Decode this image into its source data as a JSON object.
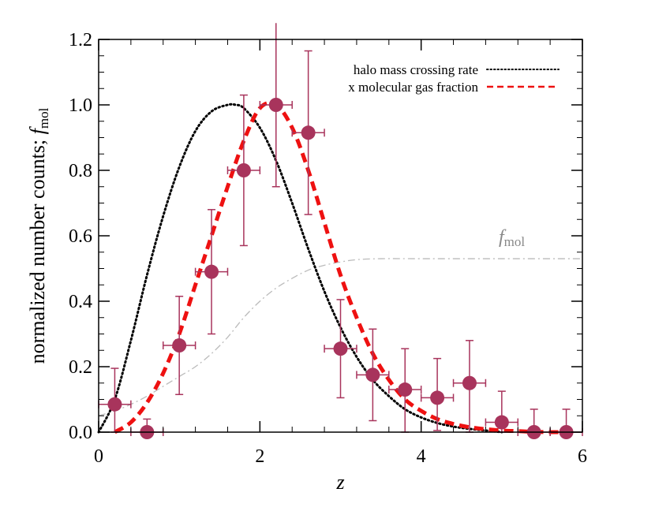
{
  "chart_data": {
    "type": "line",
    "xlabel": "z",
    "ylabel_main": "normalized number counts; ",
    "ylabel_f": "f",
    "ylabel_sub": "mol",
    "xlim": [
      0,
      6
    ],
    "ylim": [
      0,
      1.2
    ],
    "x_ticks": [
      0,
      2,
      4,
      6
    ],
    "x_tick_labels": [
      "0",
      "2",
      "4",
      "6"
    ],
    "y_ticks": [
      0,
      0.2,
      0.4,
      0.6,
      0.8,
      1.0,
      1.2
    ],
    "y_tick_labels": [
      "0.0",
      "0.2",
      "0.4",
      "0.6",
      "0.8",
      "1.0",
      "1.2"
    ],
    "legend_position": "top-right",
    "fmol_label": {
      "f": "f",
      "sub": "mol"
    },
    "series": [
      {
        "name": "halo mass crossing rate",
        "style": "dotted",
        "color": "#000000",
        "x": [
          0.0,
          0.2,
          0.4,
          0.6,
          0.8,
          1.0,
          1.2,
          1.4,
          1.6,
          1.7,
          1.8,
          2.0,
          2.2,
          2.4,
          2.6,
          2.8,
          3.0,
          3.2,
          3.4,
          3.6,
          3.8,
          4.0,
          4.2,
          4.4,
          4.6,
          4.8,
          5.0
        ],
        "y": [
          0.0,
          0.1,
          0.28,
          0.48,
          0.66,
          0.81,
          0.92,
          0.98,
          1.0,
          1.0,
          0.99,
          0.93,
          0.83,
          0.7,
          0.56,
          0.43,
          0.32,
          0.23,
          0.16,
          0.11,
          0.07,
          0.045,
          0.028,
          0.017,
          0.01,
          0.005,
          0.0
        ]
      },
      {
        "name": "x molecular gas fraction",
        "style": "dashed",
        "color": "#ee1111",
        "x": [
          0.2,
          0.4,
          0.6,
          0.8,
          1.0,
          1.2,
          1.4,
          1.6,
          1.8,
          2.0,
          2.2,
          2.4,
          2.6,
          2.8,
          3.0,
          3.2,
          3.4,
          3.6,
          3.8,
          4.0,
          4.2,
          4.4,
          4.6,
          4.8,
          5.0,
          5.2,
          5.4,
          5.6,
          5.8
        ],
        "y": [
          0.0,
          0.03,
          0.09,
          0.18,
          0.3,
          0.45,
          0.6,
          0.75,
          0.89,
          0.99,
          1.0,
          0.93,
          0.8,
          0.64,
          0.48,
          0.35,
          0.24,
          0.16,
          0.1,
          0.065,
          0.04,
          0.025,
          0.015,
          0.009,
          0.005,
          0.003,
          0.001,
          0.0,
          0.0
        ]
      },
      {
        "name": "fmol",
        "style": "dashdot",
        "color": "#bbbbbb",
        "x": [
          0.0,
          0.2,
          0.4,
          0.6,
          0.8,
          1.0,
          1.2,
          1.4,
          1.6,
          1.8,
          2.0,
          2.2,
          2.4,
          2.6,
          2.8,
          3.0,
          3.2,
          3.5,
          4.0,
          5.0,
          6.0
        ],
        "y": [
          0.05,
          0.065,
          0.085,
          0.11,
          0.14,
          0.17,
          0.2,
          0.24,
          0.29,
          0.35,
          0.4,
          0.44,
          0.47,
          0.495,
          0.51,
          0.52,
          0.527,
          0.53,
          0.53,
          0.53,
          0.53
        ]
      }
    ],
    "data_points": {
      "color": "#a8345c",
      "x": [
        0.2,
        0.6,
        1.0,
        1.4,
        1.8,
        2.2,
        2.6,
        3.0,
        3.4,
        3.8,
        4.2,
        4.6,
        5.0,
        5.4,
        5.8
      ],
      "y": [
        0.085,
        0.0,
        0.265,
        0.49,
        0.8,
        1.0,
        0.915,
        0.255,
        0.175,
        0.13,
        0.105,
        0.15,
        0.03,
        0.0,
        0.0
      ],
      "x_err": [
        0.2,
        0.2,
        0.2,
        0.2,
        0.2,
        0.2,
        0.2,
        0.2,
        0.2,
        0.2,
        0.2,
        0.2,
        0.2,
        0.2,
        0.2
      ],
      "y_err_low": [
        0.085,
        0.0,
        0.15,
        0.19,
        0.23,
        0.25,
        0.25,
        0.15,
        0.14,
        0.13,
        0.1,
        0.15,
        0.03,
        0.0,
        0.0
      ],
      "y_err_high": [
        0.11,
        0.04,
        0.15,
        0.19,
        0.23,
        0.25,
        0.25,
        0.15,
        0.14,
        0.125,
        0.12,
        0.13,
        0.095,
        0.07,
        0.07
      ]
    }
  }
}
